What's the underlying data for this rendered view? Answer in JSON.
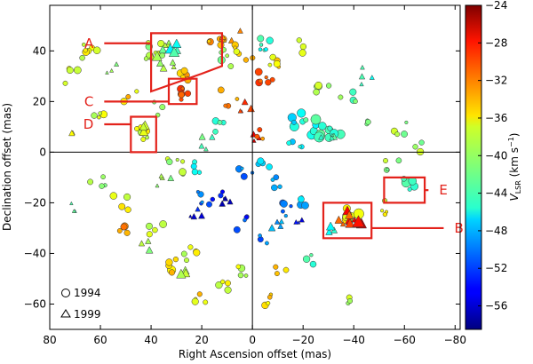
{
  "chart_data": {
    "type": "scatter",
    "xlabel": "Right Ascension offset (mas)",
    "ylabel": "Declination offset (mas)",
    "xlim": [
      80,
      -82
    ],
    "ylim": [
      -70,
      58
    ],
    "xticks": [
      80,
      60,
      40,
      20,
      0,
      -20,
      -40,
      -60,
      -80
    ],
    "yticks": [
      -60,
      -40,
      -20,
      0,
      20,
      40
    ],
    "colorbar": {
      "label": "V",
      "label_sub": "LSR",
      "unit_pre": " (km s",
      "unit_sup": "−1",
      "unit_post": ")",
      "range": [
        -58.5,
        -24
      ],
      "ticks": [
        -24,
        -28,
        -32,
        -36,
        -40,
        -44,
        -48,
        -52,
        -56
      ],
      "colormap": "jet"
    },
    "legend": {
      "position": "bottom-left",
      "items": [
        {
          "marker": "circle",
          "label": "1994"
        },
        {
          "marker": "triangle",
          "label": "1999"
        }
      ]
    },
    "regions": [
      {
        "name": "A",
        "polygon": [
          [
            40,
            47
          ],
          [
            12,
            47
          ],
          [
            12,
            34
          ],
          [
            20,
            31
          ],
          [
            40,
            24
          ]
        ],
        "label_at": [
          62,
          43
        ]
      },
      {
        "name": "B",
        "polygon": [
          [
            -28,
            -20
          ],
          [
            -47,
            -20
          ],
          [
            -47,
            -34
          ],
          [
            -28,
            -34
          ]
        ],
        "label_at": [
          -79,
          -30
        ]
      },
      {
        "name": "C",
        "polygon": [
          [
            33,
            29
          ],
          [
            22,
            29
          ],
          [
            22,
            19
          ],
          [
            33,
            19
          ]
        ],
        "label_at": [
          62,
          20
        ]
      },
      {
        "name": "D",
        "polygon": [
          [
            48,
            14
          ],
          [
            38,
            14
          ],
          [
            38,
            0
          ],
          [
            48,
            0
          ]
        ],
        "label_at": [
          62,
          11
        ]
      },
      {
        "name": "E",
        "polygon": [
          [
            -52,
            -10
          ],
          [
            -68,
            -10
          ],
          [
            -68,
            -20
          ],
          [
            -52,
            -20
          ]
        ],
        "label_at": [
          -73,
          -15
        ]
      }
    ],
    "clusters": [
      {
        "year": "1994",
        "x": 39,
        "y": 40,
        "vel": -40,
        "n": 9,
        "spread": 5,
        "size": 4
      },
      {
        "year": "1999",
        "x": 34,
        "y": 38,
        "vel": -40,
        "n": 10,
        "spread": 6,
        "size": 6
      },
      {
        "year": "1999",
        "x": 30,
        "y": 40,
        "vel": -44,
        "n": 4,
        "spread": 3,
        "size": 7
      },
      {
        "year": "1994",
        "x": 28,
        "y": 30,
        "vel": -34,
        "n": 6,
        "spread": 3,
        "size": 4
      },
      {
        "year": "1994",
        "x": 27,
        "y": 23,
        "vel": -31,
        "n": 6,
        "spread": 3,
        "size": 4
      },
      {
        "year": "1994",
        "x": 44,
        "y": 8,
        "vel": -38,
        "n": 7,
        "spread": 3,
        "size": 4
      },
      {
        "year": "1999",
        "x": 44,
        "y": 9,
        "vel": -38,
        "n": 4,
        "spread": 2,
        "size": 5
      },
      {
        "year": "1994",
        "x": 65,
        "y": 41,
        "vel": -38,
        "n": 8,
        "spread": 4,
        "size": 4
      },
      {
        "year": "1994",
        "x": 71,
        "y": 30,
        "vel": -38,
        "n": 4,
        "spread": 3,
        "size": 4
      },
      {
        "year": "1994",
        "x": 60,
        "y": 13,
        "vel": -38,
        "n": 4,
        "spread": 3,
        "size": 4
      },
      {
        "year": "1999",
        "x": 72,
        "y": 6,
        "vel": -38,
        "n": 2,
        "spread": 2,
        "size": 4
      },
      {
        "year": "1994",
        "x": 15,
        "y": 46,
        "vel": -34,
        "n": 5,
        "spread": 4,
        "size": 4
      },
      {
        "year": "1994",
        "x": 10,
        "y": 37,
        "vel": -40,
        "n": 6,
        "spread": 4,
        "size": 4
      },
      {
        "year": "1999",
        "x": 8,
        "y": 44,
        "vel": -34,
        "n": 5,
        "spread": 4,
        "size": 4
      },
      {
        "year": "1994",
        "x": 3,
        "y": 40,
        "vel": -36,
        "n": 6,
        "spread": 4,
        "size": 4
      },
      {
        "year": "1994",
        "x": -4,
        "y": 42,
        "vel": -44,
        "n": 6,
        "spread": 3,
        "size": 4
      },
      {
        "year": "1994",
        "x": -8,
        "y": 35,
        "vel": -36,
        "n": 5,
        "spread": 3,
        "size": 4
      },
      {
        "year": "1994",
        "x": -5,
        "y": 30,
        "vel": -30,
        "n": 6,
        "spread": 3,
        "size": 4
      },
      {
        "year": "1994",
        "x": -20,
        "y": 42,
        "vel": -38,
        "n": 3,
        "spread": 3,
        "size": 4
      },
      {
        "year": "1994",
        "x": -28,
        "y": 26,
        "vel": -40,
        "n": 5,
        "spread": 3,
        "size": 4
      },
      {
        "year": "1994",
        "x": -38,
        "y": 24,
        "vel": -42,
        "n": 4,
        "spread": 4,
        "size": 4
      },
      {
        "year": "1999",
        "x": -45,
        "y": 30,
        "vel": -44,
        "n": 4,
        "spread": 4,
        "size": 4
      },
      {
        "year": "1994",
        "x": 10,
        "y": 22,
        "vel": -34,
        "n": 4,
        "spread": 4,
        "size": 4
      },
      {
        "year": "1999",
        "x": 4,
        "y": 20,
        "vel": -30,
        "n": 4,
        "spread": 4,
        "size": 4
      },
      {
        "year": "1994",
        "x": 14,
        "y": 10,
        "vel": -44,
        "n": 4,
        "spread": 3,
        "size": 4
      },
      {
        "year": "1999",
        "x": 18,
        "y": 4,
        "vel": -42,
        "n": 4,
        "spread": 3,
        "size": 4
      },
      {
        "year": "1994",
        "x": -18,
        "y": 13,
        "vel": -46,
        "n": 6,
        "spread": 3,
        "size": 5
      },
      {
        "year": "1994",
        "x": -25,
        "y": 9,
        "vel": -44,
        "n": 8,
        "spread": 4,
        "size": 6
      },
      {
        "year": "1994",
        "x": -33,
        "y": 8,
        "vel": -44,
        "n": 6,
        "spread": 3,
        "size": 5
      },
      {
        "year": "1999",
        "x": -30,
        "y": 5,
        "vel": -44,
        "n": 4,
        "spread": 3,
        "size": 4
      },
      {
        "year": "1994",
        "x": -17,
        "y": 2,
        "vel": -46,
        "n": 4,
        "spread": 3,
        "size": 4
      },
      {
        "year": "1999",
        "x": -2,
        "y": 6,
        "vel": -28,
        "n": 3,
        "spread": 2,
        "size": 4
      },
      {
        "year": "1994",
        "x": -3,
        "y": 7,
        "vel": -32,
        "n": 3,
        "spread": 2,
        "size": 4
      },
      {
        "year": "1994",
        "x": -5,
        "y": -3,
        "vel": -48,
        "n": 4,
        "spread": 3,
        "size": 4
      },
      {
        "year": "1994",
        "x": 3,
        "y": -8,
        "vel": -50,
        "n": 4,
        "spread": 3,
        "size": 4
      },
      {
        "year": "1994",
        "x": -8,
        "y": -12,
        "vel": -48,
        "n": 4,
        "spread": 3,
        "size": 4
      },
      {
        "year": "1999",
        "x": -10,
        "y": -28,
        "vel": -48,
        "n": 4,
        "spread": 3,
        "size": 4
      },
      {
        "year": "1994",
        "x": 5,
        "y": -28,
        "vel": -52,
        "n": 4,
        "spread": 3,
        "size": 4
      },
      {
        "year": "1994",
        "x": -3,
        "y": -35,
        "vel": -50,
        "n": 3,
        "spread": 3,
        "size": 4
      },
      {
        "year": "1994",
        "x": 20,
        "y": -18,
        "vel": -50,
        "n": 5,
        "spread": 3,
        "size": 4
      },
      {
        "year": "1999",
        "x": 22,
        "y": -24,
        "vel": -54,
        "n": 4,
        "spread": 3,
        "size": 4
      },
      {
        "year": "1994",
        "x": 13,
        "y": -18,
        "vel": -54,
        "n": 4,
        "spread": 3,
        "size": 4
      },
      {
        "year": "1999",
        "x": 10,
        "y": -20,
        "vel": -56,
        "n": 3,
        "spread": 2,
        "size": 4
      },
      {
        "year": "1994",
        "x": 30,
        "y": -5,
        "vel": -40,
        "n": 6,
        "spread": 4,
        "size": 4
      },
      {
        "year": "1999",
        "x": 35,
        "y": -12,
        "vel": -40,
        "n": 4,
        "spread": 3,
        "size": 4
      },
      {
        "year": "1994",
        "x": 62,
        "y": -10,
        "vel": -40,
        "n": 4,
        "spread": 4,
        "size": 4
      },
      {
        "year": "1994",
        "x": 52,
        "y": -20,
        "vel": -38,
        "n": 4,
        "spread": 3,
        "size": 4
      },
      {
        "year": "1999",
        "x": 70,
        "y": -22,
        "vel": -44,
        "n": 3,
        "spread": 3,
        "size": 4
      },
      {
        "year": "1994",
        "x": 50,
        "y": -30,
        "vel": -34,
        "n": 4,
        "spread": 3,
        "size": 4
      },
      {
        "year": "1994",
        "x": 38,
        "y": -30,
        "vel": -38,
        "n": 4,
        "spread": 3,
        "size": 4
      },
      {
        "year": "1999",
        "x": 43,
        "y": -36,
        "vel": -40,
        "n": 3,
        "spread": 3,
        "size": 4
      },
      {
        "year": "1994",
        "x": 25,
        "y": -40,
        "vel": -38,
        "n": 5,
        "spread": 3,
        "size": 4
      },
      {
        "year": "1994",
        "x": 32,
        "y": -45,
        "vel": -36,
        "n": 5,
        "spread": 3,
        "size": 5
      },
      {
        "year": "1999",
        "x": 27,
        "y": -48,
        "vel": -40,
        "n": 3,
        "spread": 2,
        "size": 6
      },
      {
        "year": "1994",
        "x": 20,
        "y": -58,
        "vel": -36,
        "n": 4,
        "spread": 3,
        "size": 4
      },
      {
        "year": "1994",
        "x": 12,
        "y": -52,
        "vel": -38,
        "n": 4,
        "spread": 3,
        "size": 4
      },
      {
        "year": "1994",
        "x": 5,
        "y": -48,
        "vel": -38,
        "n": 4,
        "spread": 3,
        "size": 4
      },
      {
        "year": "1994",
        "x": -6,
        "y": -58,
        "vel": -36,
        "n": 4,
        "spread": 3,
        "size": 4
      },
      {
        "year": "1994",
        "x": -12,
        "y": -48,
        "vel": -36,
        "n": 3,
        "spread": 3,
        "size": 4
      },
      {
        "year": "1994",
        "x": -22,
        "y": -42,
        "vel": -44,
        "n": 3,
        "spread": 3,
        "size": 4
      },
      {
        "year": "1994",
        "x": -38,
        "y": -58,
        "vel": -40,
        "n": 3,
        "spread": 2,
        "size": 4
      },
      {
        "year": "1994",
        "x": -40,
        "y": -24,
        "vel": -36,
        "n": 6,
        "spread": 3,
        "size": 6
      },
      {
        "year": "1999",
        "x": -36,
        "y": -26,
        "vel": -30,
        "n": 6,
        "spread": 3,
        "size": 6
      },
      {
        "year": "1999",
        "x": -42,
        "y": -28,
        "vel": -28,
        "n": 4,
        "spread": 2,
        "size": 7
      },
      {
        "year": "1999",
        "x": -31,
        "y": -30,
        "vel": -44,
        "n": 3,
        "spread": 2,
        "size": 5
      },
      {
        "year": "1994",
        "x": -53,
        "y": -22,
        "vel": -38,
        "n": 4,
        "spread": 3,
        "size": 4
      },
      {
        "year": "1994",
        "x": -62,
        "y": -13,
        "vel": -44,
        "n": 5,
        "spread": 3,
        "size": 5
      },
      {
        "year": "1994",
        "x": -55,
        "y": -5,
        "vel": -40,
        "n": 4,
        "spread": 3,
        "size": 4
      },
      {
        "year": "1994",
        "x": -58,
        "y": 10,
        "vel": -40,
        "n": 4,
        "spread": 3,
        "size": 4
      },
      {
        "year": "1994",
        "x": -65,
        "y": 2,
        "vel": -40,
        "n": 3,
        "spread": 2,
        "size": 4
      },
      {
        "year": "1994",
        "x": -45,
        "y": 12,
        "vel": -40,
        "n": 3,
        "spread": 3,
        "size": 4
      },
      {
        "year": "1994",
        "x": -14,
        "y": -23,
        "vel": -50,
        "n": 5,
        "spread": 3,
        "size": 4
      },
      {
        "year": "1994",
        "x": -22,
        "y": -20,
        "vel": -48,
        "n": 4,
        "spread": 3,
        "size": 4
      },
      {
        "year": "1999",
        "x": -18,
        "y": -27,
        "vel": -54,
        "n": 3,
        "spread": 2,
        "size": 4
      },
      {
        "year": "1994",
        "x": 38,
        "y": 17,
        "vel": -40,
        "n": 3,
        "spread": 3,
        "size": 4
      },
      {
        "year": "1994",
        "x": 48,
        "y": 22,
        "vel": -36,
        "n": 3,
        "spread": 3,
        "size": 4
      },
      {
        "year": "1999",
        "x": 56,
        "y": 34,
        "vel": -42,
        "n": 3,
        "spread": 3,
        "size": 4
      },
      {
        "year": "1994",
        "x": 21,
        "y": -5,
        "vel": -46,
        "n": 4,
        "spread": 3,
        "size": 4
      }
    ]
  }
}
